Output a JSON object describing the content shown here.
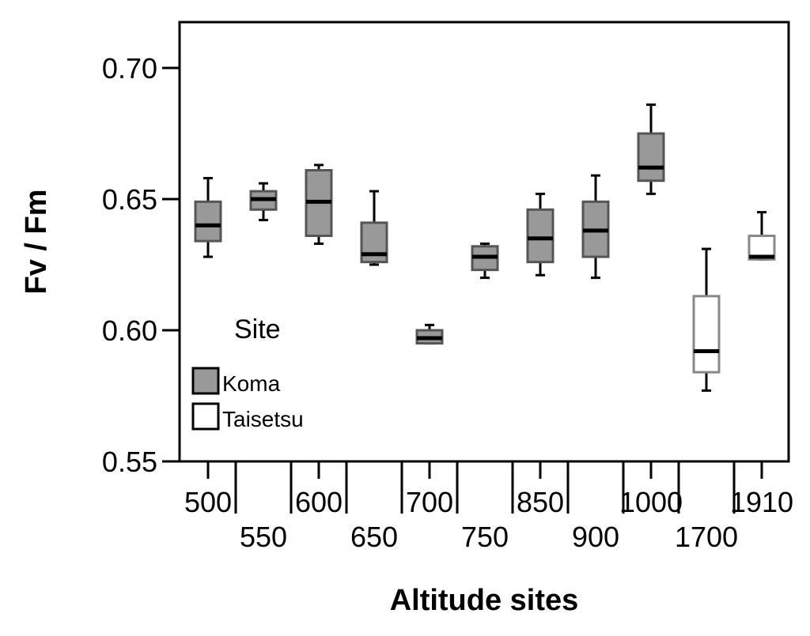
{
  "chart_data": {
    "type": "boxplot",
    "xlabel": "Altitude sites",
    "ylabel": "Fv / Fm",
    "ylim": [
      0.55,
      0.72
    ],
    "yticks": [
      "0.55",
      "0.60",
      "0.65",
      "0.70"
    ],
    "grid": false,
    "legend": {
      "title": "Site",
      "placement": "lower-left",
      "entries": [
        {
          "name": "Koma",
          "color": "#999999"
        },
        {
          "name": "Taisetsu",
          "color": "#ffffff"
        }
      ]
    },
    "categories": [
      "500",
      "550",
      "600",
      "650",
      "700",
      "750",
      "850",
      "900",
      "1000",
      "1700",
      "1910"
    ],
    "boxes": [
      {
        "category": "500",
        "site": "Koma",
        "min": 0.628,
        "q1": 0.634,
        "median": 0.64,
        "q3": 0.649,
        "max": 0.658
      },
      {
        "category": "550",
        "site": "Koma",
        "min": 0.642,
        "q1": 0.646,
        "median": 0.65,
        "q3": 0.653,
        "max": 0.656
      },
      {
        "category": "600",
        "site": "Koma",
        "min": 0.633,
        "q1": 0.636,
        "median": 0.649,
        "q3": 0.661,
        "max": 0.663
      },
      {
        "category": "650",
        "site": "Koma",
        "min": 0.625,
        "q1": 0.626,
        "median": 0.629,
        "q3": 0.641,
        "max": 0.653
      },
      {
        "category": "700",
        "site": "Koma",
        "min": 0.595,
        "q1": 0.595,
        "median": 0.597,
        "q3": 0.6,
        "max": 0.602
      },
      {
        "category": "750",
        "site": "Koma",
        "min": 0.62,
        "q1": 0.623,
        "median": 0.628,
        "q3": 0.632,
        "max": 0.633
      },
      {
        "category": "850",
        "site": "Koma",
        "min": 0.621,
        "q1": 0.626,
        "median": 0.635,
        "q3": 0.646,
        "max": 0.652
      },
      {
        "category": "900",
        "site": "Koma",
        "min": 0.62,
        "q1": 0.628,
        "median": 0.638,
        "q3": 0.649,
        "max": 0.659
      },
      {
        "category": "1000",
        "site": "Koma",
        "min": 0.652,
        "q1": 0.657,
        "median": 0.662,
        "q3": 0.675,
        "max": 0.686
      },
      {
        "category": "1700",
        "site": "Taisetsu",
        "min": 0.577,
        "q1": 0.584,
        "median": 0.592,
        "q3": 0.613,
        "max": 0.631
      },
      {
        "category": "1910",
        "site": "Taisetsu",
        "min": 0.627,
        "q1": 0.627,
        "median": 0.628,
        "q3": 0.636,
        "max": 0.645
      }
    ]
  }
}
